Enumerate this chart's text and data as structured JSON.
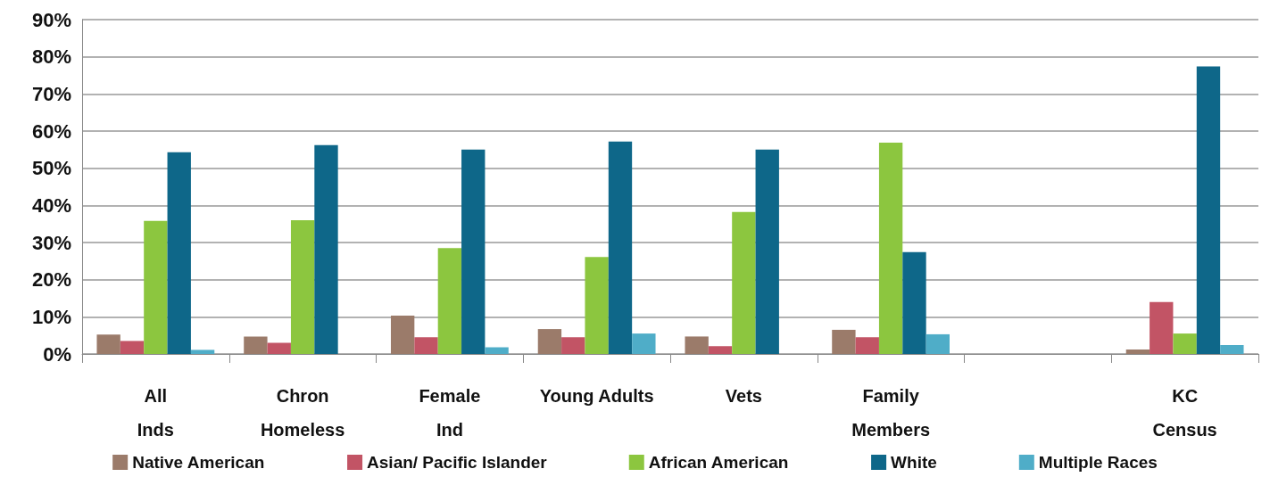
{
  "chart_data": {
    "type": "bar",
    "categories": [
      "All\nInds",
      "Chron\nHomeless",
      "Female\nInd",
      "Young Adults",
      "Vets",
      "Family\nMembers",
      null,
      "KC\nCensus"
    ],
    "series": [
      {
        "name": "Native American",
        "color": "#9b7b6a",
        "values": [
          5.2,
          4.7,
          10.3,
          6.7,
          4.7,
          6.5,
          null,
          1.2
        ]
      },
      {
        "name": "Asian/ Pacific Islander",
        "color": "#c25465",
        "values": [
          3.5,
          3.0,
          4.5,
          4.5,
          2.1,
          4.5,
          null,
          14.0
        ]
      },
      {
        "name": "African American",
        "color": "#8cc63f",
        "values": [
          35.8,
          36.0,
          28.5,
          26.1,
          38.2,
          56.9,
          null,
          5.5
        ]
      },
      {
        "name": "White",
        "color": "#0e6789",
        "values": [
          54.3,
          56.2,
          55.0,
          57.2,
          55.0,
          27.4,
          null,
          77.4
        ]
      },
      {
        "name": "Multiple Races",
        "color": "#4fadc8",
        "values": [
          1.1,
          null,
          1.8,
          5.5,
          null,
          5.3,
          null,
          2.4
        ]
      }
    ],
    "ylim": [
      0,
      90
    ],
    "yticks": [
      {
        "value": 0,
        "label": "0%"
      },
      {
        "value": 10,
        "label": "10%"
      },
      {
        "value": 20,
        "label": "20%"
      },
      {
        "value": 30,
        "label": "30%"
      },
      {
        "value": 40,
        "label": "40%"
      },
      {
        "value": 50,
        "label": "50%"
      },
      {
        "value": 60,
        "label": "60%"
      },
      {
        "value": 70,
        "label": "70%"
      },
      {
        "value": 80,
        "label": "80%"
      },
      {
        "value": 90,
        "label": "90%"
      }
    ],
    "grid": "y",
    "legend": "bottom"
  }
}
